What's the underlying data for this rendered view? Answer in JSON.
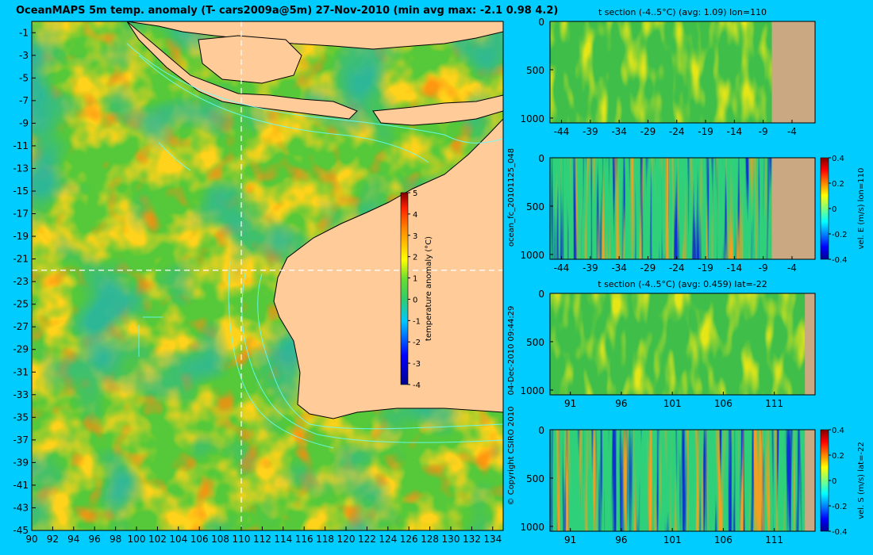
{
  "colors": {
    "background": "#00ccff",
    "land": "#ffcc99",
    "section_land": "#c9a882",
    "guide_line": "#ffffff",
    "contour": "#66ffff"
  },
  "texts": {
    "main_title": "OceanMAPS 5m temp. anomaly (T- cars2009a@5m) 27-Nov-2010 (min avg max: -2.1 0.98 4.2)",
    "run_id": "ocean_fc_20101125_048",
    "timestamp": "04-Dec-2010 09:44:29",
    "copyright": "© Copyright CSIRO 2010"
  },
  "chart_data": [
    {
      "id": "map",
      "type": "heatmap",
      "title": "",
      "xlabel": "",
      "ylabel": "",
      "xlim": [
        90,
        135
      ],
      "ylim": [
        -45,
        0
      ],
      "xticks": [
        90,
        92,
        94,
        96,
        98,
        100,
        102,
        104,
        106,
        108,
        110,
        112,
        114,
        116,
        118,
        120,
        122,
        124,
        126,
        128,
        130,
        132,
        134
      ],
      "yticks": [
        -1,
        -3,
        -5,
        -7,
        -9,
        -11,
        -13,
        -15,
        -17,
        -19,
        -21,
        -23,
        -25,
        -27,
        -29,
        -31,
        -33,
        -35,
        -37,
        -39,
        -41,
        -43,
        -45
      ],
      "guide_lon": 110,
      "guide_lat": -22,
      "colorbar": {
        "label": "temperature anomaly (°C)",
        "ticks": [
          5,
          4,
          3,
          2,
          1,
          0,
          -1,
          -2,
          -3,
          -4
        ],
        "range": [
          -4,
          5
        ]
      },
      "grid": false
    },
    {
      "id": "section_t_lon110",
      "type": "heatmap",
      "title": "t section (-4..5°C) (avg: 1.09) lon=110",
      "xticks": [
        -44,
        -39,
        -34,
        -29,
        -24,
        -19,
        -14,
        -9,
        -4
      ],
      "xlim": [
        -46,
        0
      ],
      "yticks": [
        0,
        500,
        1000
      ],
      "ylim": [
        0,
        1050
      ],
      "land_from_x": -7.5
    },
    {
      "id": "section_velE_lon110",
      "type": "heatmap",
      "title": "",
      "xticks": [
        -44,
        -39,
        -34,
        -29,
        -24,
        -19,
        -14,
        -9,
        -4
      ],
      "xlim": [
        -46,
        0
      ],
      "yticks": [
        0,
        500,
        1000
      ],
      "ylim": [
        0,
        1050
      ],
      "land_from_x": -7.5,
      "colorbar": {
        "label": "vel. E (m/s) lon=110",
        "ticks": [
          "0.4",
          "0.2",
          "0",
          "-0.2",
          "-0.4"
        ],
        "range": [
          -0.4,
          0.4
        ]
      }
    },
    {
      "id": "section_t_lat22",
      "type": "heatmap",
      "title": "t section (-4..5°C) (avg: 0.459) lat=-22",
      "xticks": [
        91,
        96,
        101,
        106,
        111
      ],
      "xlim": [
        89,
        115
      ],
      "yticks": [
        0,
        500,
        1000
      ],
      "ylim": [
        0,
        1050
      ],
      "land_from_x": 114
    },
    {
      "id": "section_velS_lat22",
      "type": "heatmap",
      "title": "",
      "xticks": [
        91,
        96,
        101,
        106,
        111
      ],
      "xlim": [
        89,
        115
      ],
      "yticks": [
        0,
        500,
        1000
      ],
      "ylim": [
        0,
        1050
      ],
      "land_from_x": 114,
      "colorbar": {
        "label": "vel. S (m/s) lat=-22",
        "ticks": [
          "0.4",
          "0.2",
          "0",
          "-0.2",
          "-0.4"
        ],
        "range": [
          -0.4,
          0.4
        ]
      }
    }
  ]
}
